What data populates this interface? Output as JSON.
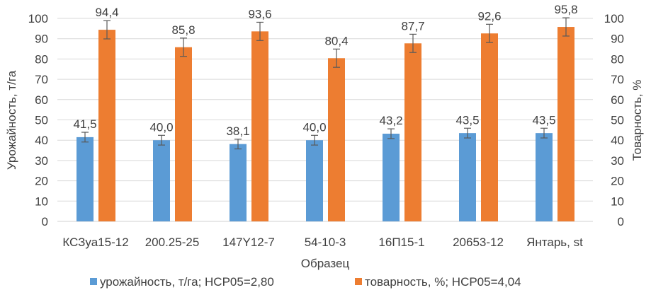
{
  "chart_data": {
    "type": "bar",
    "title": "",
    "xlabel": "Образец",
    "ylabel": "Урожайность, т/га",
    "y2label": "Товарность, %",
    "ylim": [
      0,
      100
    ],
    "y2lim": [
      0,
      100
    ],
    "yticks": [
      0,
      10,
      20,
      30,
      40,
      50,
      60,
      70,
      80,
      90,
      100
    ],
    "grid": true,
    "legend_position": "bottom",
    "categories": [
      "КСЗуа15-12",
      "200.25-25",
      "147Y12-7",
      "54-10-3",
      "16П15-1",
      "20653-12",
      "Янтарь, st"
    ],
    "series": [
      {
        "name": "урожайность, т/га; НСР05=2,80",
        "color": "#5B9BD5",
        "values": [
          41.5,
          40.0,
          38.1,
          40.0,
          43.2,
          43.5,
          43.5
        ],
        "labels": [
          "41,5",
          "40,0",
          "38,1",
          "40,0",
          "43,2",
          "43,5",
          "43,5"
        ],
        "error": 2.4
      },
      {
        "name": "товарность, %; НСР05=4,04",
        "color": "#ED7D31",
        "values": [
          94.4,
          85.8,
          93.6,
          80.4,
          87.7,
          92.6,
          95.8
        ],
        "labels": [
          "94,4",
          "85,8",
          "93,6",
          "80,4",
          "87,7",
          "92,6",
          "95,8"
        ],
        "error": 4.5
      }
    ]
  }
}
